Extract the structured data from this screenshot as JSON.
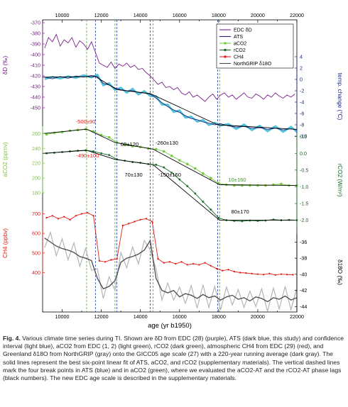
{
  "chart_data": {
    "type": "line",
    "xlabel": "age (yr b1950)",
    "xlim": [
      9000,
      22000
    ],
    "x_ticks": [
      10000,
      12000,
      14000,
      16000,
      18000,
      20000,
      22000
    ],
    "tick_labels": {
      "top_x": [
        "10000",
        "12000",
        "14000",
        "16000",
        "18000",
        "20000",
        "22000"
      ],
      "bottom_x": [
        "10000",
        "12000",
        "14000",
        "16000",
        "18000",
        "20000",
        "22000"
      ],
      "dD": [
        "-370",
        "-380",
        "-390",
        "-400",
        "-410",
        "-420",
        "-430",
        "-440",
        "-450"
      ],
      "temp": [
        "4",
        "2",
        "0",
        "-2",
        "-4",
        "-6",
        "-8",
        "-10"
      ],
      "aco2": [
        "260",
        "240",
        "220",
        "200",
        "180"
      ],
      "rco2": [
        "0.5",
        "0.0",
        "-0.5",
        "-1.0",
        "-1.5",
        "-2.0"
      ],
      "ch4": [
        "700",
        "600",
        "500",
        "400"
      ],
      "d18o": [
        "-36",
        "-38",
        "-40",
        "-42",
        "-44"
      ]
    },
    "axes": [
      {
        "label": "δD (‰)",
        "side": "left",
        "range": [
          -450,
          -370
        ],
        "ticks": [
          -370,
          -380,
          -390,
          -400,
          -410,
          -420,
          -430,
          -440,
          -450
        ]
      },
      {
        "label": "temp. change (°C)",
        "side": "right",
        "range": [
          -10,
          4
        ],
        "ticks": [
          4,
          2,
          0,
          -2,
          -4,
          -6,
          -8,
          -10
        ]
      },
      {
        "label": "aCO2 (ppmv)",
        "side": "left",
        "range": [
          180,
          270
        ],
        "ticks": [
          260,
          240,
          220,
          200,
          180
        ]
      },
      {
        "label": "rCO2 (W/m²)",
        "side": "right",
        "range": [
          -2.2,
          0.6
        ],
        "ticks": [
          0.5,
          0.0,
          -0.5,
          -1.0,
          -1.5,
          -2.0
        ]
      },
      {
        "label": "CH4 (ppbv)",
        "side": "left",
        "range": [
          380,
          720
        ],
        "ticks": [
          700,
          600,
          500,
          400
        ]
      },
      {
        "label": "δ18O (‰)",
        "side": "right",
        "range": [
          -44.5,
          -35
        ],
        "ticks": [
          -36,
          -38,
          -40,
          -42,
          -44
        ]
      }
    ],
    "legend_position": "top-right",
    "legend": [
      "EDC δD",
      "ATS",
      "aCO2",
      "rCO2",
      "CH4",
      "NorthGRIP δ18O"
    ],
    "colors": {
      "edc": "#7b1f8c",
      "ats": "#1a237e",
      "ats_ci": "#4fc3d9",
      "aco2": "#7ac943",
      "rco2": "#1e6b2a",
      "ch4": "#e0211b",
      "d18o_raw": "#b5b5b5",
      "d18o_avg": "#4a4a4a",
      "vline_green": "#4caf1e",
      "vline_blue": "#1f3fa6",
      "fit": "#000000",
      "label_red": "#e0211b",
      "label_green": "#3d9a1f"
    },
    "vertical_lines": [
      {
        "x": 11250,
        "color": "green"
      },
      {
        "x": 11700,
        "color": "blue"
      },
      {
        "x": 12700,
        "color": "green"
      },
      {
        "x": 12800,
        "color": "blue"
      },
      {
        "x": 14500,
        "color": "blue"
      },
      {
        "x": 14650,
        "color": "green"
      },
      {
        "x": 17950,
        "color": "blue"
      },
      {
        "x": 18050,
        "color": "green"
      }
    ],
    "annotations": [
      "-500±90",
      "60±120",
      "-260±130",
      "-490±100",
      "70±130",
      "-150±160",
      "10±160",
      "80±170"
    ],
    "series": [
      {
        "name": "EDC δD",
        "axis": "dD",
        "x": [
          9100,
          9300,
          9500,
          9700,
          9900,
          10100,
          10300,
          10500,
          10700,
          10900,
          11100,
          11300,
          11500,
          11700,
          11900,
          12100,
          12300,
          12500,
          12700,
          12900,
          13100,
          13300,
          13500,
          13700,
          13900,
          14100,
          14300,
          14500,
          14700,
          14900,
          15100,
          15300,
          15500,
          15700,
          15900,
          16100,
          16300,
          16500,
          16700,
          16900,
          17100,
          17300,
          17500,
          17700,
          17900,
          18100,
          18300,
          18500,
          18700,
          18900,
          19100,
          19300,
          19500,
          19700,
          19900,
          20100,
          20300,
          20500,
          20700,
          20900,
          21100,
          21300,
          21500,
          21700,
          21900
        ],
        "y": [
          -394,
          -384,
          -388,
          -381,
          -392,
          -386,
          -389,
          -384,
          -393,
          -387,
          -390,
          -395,
          -388,
          -398,
          -408,
          -410,
          -412,
          -407,
          -413,
          -409,
          -411,
          -408,
          -412,
          -410,
          -414,
          -413,
          -417,
          -420,
          -424,
          -428,
          -426,
          -431,
          -430,
          -433,
          -431,
          -436,
          -438,
          -435,
          -440,
          -438,
          -441,
          -444,
          -440,
          -437,
          -442,
          -438,
          -436,
          -440,
          -438,
          -442,
          -439,
          -436,
          -440,
          -441,
          -437,
          -439,
          -442,
          -438,
          -440,
          -436,
          -439,
          -441,
          -438,
          -440,
          -437
        ]
      },
      {
        "name": "ATS",
        "axis": "temp",
        "x": [
          9100,
          9500,
          9900,
          10300,
          10700,
          11100,
          11500,
          11800,
          12100,
          12400,
          12700,
          13000,
          13300,
          13600,
          13900,
          14200,
          14500,
          14800,
          15100,
          15400,
          15700,
          16000,
          16300,
          16600,
          16900,
          17200,
          17500,
          17800,
          18100,
          18500,
          18900,
          19300,
          19700,
          20100,
          20500,
          20900,
          21300,
          21700,
          22000
        ],
        "y": [
          0.4,
          0.1,
          0.5,
          0.2,
          0.6,
          0.4,
          0.7,
          0.5,
          -0.7,
          -1.0,
          -1.5,
          -1.8,
          -2.0,
          -2.0,
          -2.3,
          -2.4,
          -2.6,
          -3.3,
          -4.1,
          -4.8,
          -5.4,
          -5.8,
          -6.4,
          -6.9,
          -7.1,
          -7.5,
          -7.7,
          -8.0,
          -7.8,
          -8.2,
          -8.4,
          -8.3,
          -8.6,
          -8.5,
          -8.8,
          -8.6,
          -8.9,
          -8.7,
          -8.9
        ]
      },
      {
        "name": "aCO2",
        "axis": "aco2",
        "x": [
          9200,
          9600,
          10000,
          10400,
          10800,
          11200,
          11600,
          12000,
          12400,
          12800,
          13200,
          13600,
          14000,
          14400,
          14800,
          15200,
          15600,
          16000,
          16400,
          16800,
          17200,
          17600,
          18000,
          18400,
          18800,
          19200,
          19600,
          20000,
          20400,
          20800,
          21200,
          21600,
          22000
        ],
        "y": [
          259,
          261,
          262,
          264,
          265,
          266,
          263,
          258,
          255,
          248,
          245,
          243,
          242,
          240,
          239,
          236,
          230,
          224,
          219,
          213,
          206,
          200,
          193,
          191,
          190,
          190,
          190,
          190,
          190,
          191,
          192,
          190,
          190
        ]
      },
      {
        "name": "rCO2",
        "axis": "rco2",
        "x": [
          9200,
          9600,
          10000,
          10400,
          10800,
          11200,
          11600,
          12000,
          12400,
          12800,
          13200,
          13600,
          14000,
          14400,
          14800,
          15200,
          15600,
          16000,
          16400,
          16800,
          17200,
          17600,
          18000,
          18400,
          18800,
          19200,
          19600,
          20000,
          20400,
          20800,
          21200,
          21600,
          22000
        ],
        "y": [
          0.0,
          0.02,
          0.04,
          0.06,
          0.08,
          0.09,
          0.06,
          0.0,
          -0.05,
          -0.18,
          -0.22,
          -0.26,
          -0.28,
          -0.32,
          -0.34,
          -0.42,
          -0.58,
          -0.78,
          -0.98,
          -1.2,
          -1.45,
          -1.68,
          -1.93,
          -2.0,
          -2.02,
          -2.03,
          -2.01,
          -2.02,
          -2.01,
          -1.98,
          -2.0,
          -1.99,
          -2.0
        ]
      },
      {
        "name": "CH4",
        "axis": "ch4",
        "x": [
          9200,
          9500,
          9800,
          10100,
          10400,
          10700,
          11000,
          11300,
          11600,
          11900,
          12200,
          12500,
          12800,
          13100,
          13400,
          13700,
          14000,
          14300,
          14600,
          14900,
          15200,
          15500,
          15800,
          16100,
          16400,
          16700,
          17000,
          17300,
          17600,
          17900,
          18200,
          18500,
          18800,
          19100,
          19400,
          19700,
          20000,
          20300,
          20600,
          20900,
          21200,
          21500,
          21800
        ],
        "y": [
          680,
          690,
          675,
          685,
          670,
          690,
          700,
          705,
          690,
          460,
          455,
          465,
          470,
          640,
          650,
          660,
          670,
          675,
          660,
          470,
          450,
          455,
          445,
          455,
          440,
          445,
          440,
          450,
          435,
          420,
          410,
          415,
          405,
          400,
          398,
          395,
          392,
          390,
          395,
          388,
          392,
          390,
          389
        ]
      },
      {
        "name": "NorthGRIP δ18O",
        "axis": "d18o",
        "x": [
          9100,
          9400,
          9700,
          10000,
          10300,
          10600,
          10900,
          11200,
          11500,
          11800,
          12100,
          12400,
          12700,
          13000,
          13300,
          13600,
          13900,
          14200,
          14500,
          14800,
          15100,
          15400,
          15700,
          16000,
          16300,
          16600,
          16900,
          17200,
          17500,
          17800,
          18100,
          18400,
          18700,
          19000,
          19300,
          19600,
          19900,
          20200,
          20500,
          20800,
          21100,
          21400,
          21700,
          22000
        ],
        "y": [
          -35.5,
          -36.0,
          -36.5,
          -36.8,
          -37.0,
          -37.3,
          -37.8,
          -38.0,
          -38.3,
          -40.5,
          -41.8,
          -41.5,
          -40.8,
          -38.5,
          -38.0,
          -37.8,
          -37.5,
          -37.0,
          -35.8,
          -40.5,
          -42.0,
          -42.3,
          -42.0,
          -42.8,
          -42.4,
          -42.6,
          -43.0,
          -42.5,
          -42.9,
          -42.7,
          -43.2,
          -42.8,
          -42.6,
          -43.1,
          -42.9,
          -43.3,
          -42.8,
          -43.0,
          -43.4,
          -42.9,
          -43.1,
          -42.7,
          -43.2,
          -42.9
        ]
      }
    ]
  },
  "caption": {
    "fig_label": "Fig. 4.",
    "text": " Various climate time series during TI. Shown are δD from EDC (28) (purple), ATS (dark blue, this study) and confidence interval (light blue), aCO2 from EDC (1, 2) (light green), rCO2 (dark green), atmospheric CH4 from EDC (29) (red), and Greenland δ18O from NorthGRIP (gray) onto the GICC05 age scale (27) with a 220-year running average (dark gray). The solid lines represent the best six-point linear fit of ATS, aCO2, and rCO2 (supplementary materials). The vertical dashed lines mark the four break points in ATS (blue) and in aCO2 (green), where we evaluated the aCO2-AT and the rCO2-AT phase lags (black numbers). The new EDC age scale is described in the supplementary materials."
  }
}
